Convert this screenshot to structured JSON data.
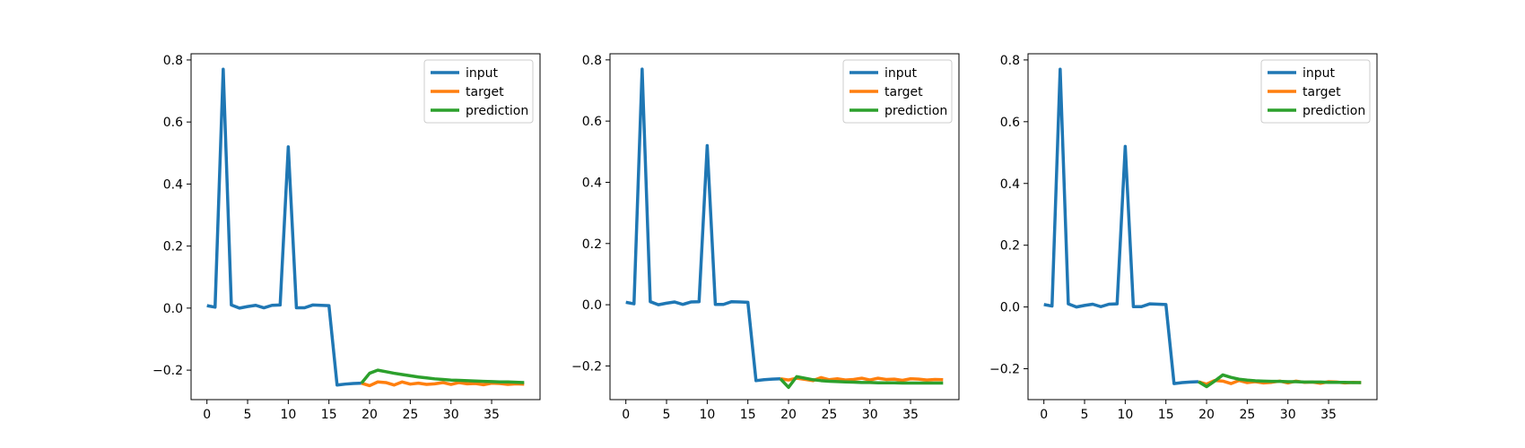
{
  "colors": {
    "input": "#1f77b4",
    "target": "#ff7f0e",
    "prediction": "#2ca02c"
  },
  "chart_data": [
    {
      "type": "line",
      "legend_position": "top-right",
      "grid": false,
      "xlim": [
        -1.95,
        40.95
      ],
      "ylim": [
        -0.295,
        0.82
      ],
      "xticks": [
        0,
        5,
        10,
        15,
        20,
        25,
        30,
        35
      ],
      "yticks": [
        -0.2,
        0.0,
        0.2,
        0.4,
        0.6,
        0.8
      ],
      "ytick_labels": [
        "−0.2",
        "0.0",
        "0.2",
        "0.4",
        "0.6",
        "0.8"
      ],
      "series": [
        {
          "name": "input",
          "x_start": 0,
          "values": [
            0.008,
            0.003,
            0.77,
            0.01,
            0.0,
            0.005,
            0.009,
            0.001,
            0.009,
            0.01,
            0.52,
            0.001,
            0.001,
            0.01,
            0.009,
            0.008,
            -0.248,
            -0.245,
            -0.243,
            -0.242
          ]
        },
        {
          "name": "target",
          "x_start": 19,
          "values": [
            -0.242,
            -0.25,
            -0.238,
            -0.24,
            -0.248,
            -0.238,
            -0.245,
            -0.242,
            -0.246,
            -0.244,
            -0.24,
            -0.246,
            -0.24,
            -0.244,
            -0.243,
            -0.247,
            -0.242,
            -0.243,
            -0.246,
            -0.244,
            -0.245
          ]
        },
        {
          "name": "prediction",
          "x_start": 19,
          "values": [
            -0.242,
            -0.21,
            -0.2,
            -0.205,
            -0.21,
            -0.214,
            -0.218,
            -0.222,
            -0.225,
            -0.228,
            -0.23,
            -0.232,
            -0.233,
            -0.234,
            -0.235,
            -0.236,
            -0.237,
            -0.238,
            -0.238,
            -0.239,
            -0.24
          ]
        }
      ]
    },
    {
      "type": "line",
      "legend_position": "top-right",
      "grid": false,
      "xlim": [
        -1.95,
        40.95
      ],
      "ylim": [
        -0.31,
        0.82
      ],
      "xticks": [
        0,
        5,
        10,
        15,
        20,
        25,
        30,
        35
      ],
      "yticks": [
        -0.2,
        0.0,
        0.2,
        0.4,
        0.6,
        0.8
      ],
      "ytick_labels": [
        "−0.2",
        "0.0",
        "0.2",
        "0.4",
        "0.6",
        "0.8"
      ],
      "series": [
        {
          "name": "input",
          "x_start": 0,
          "values": [
            0.008,
            0.003,
            0.77,
            0.01,
            0.0,
            0.005,
            0.009,
            0.001,
            0.009,
            0.01,
            0.52,
            0.001,
            0.001,
            0.01,
            0.009,
            0.008,
            -0.248,
            -0.245,
            -0.243,
            -0.242
          ]
        },
        {
          "name": "target",
          "x_start": 19,
          "values": [
            -0.242,
            -0.246,
            -0.24,
            -0.244,
            -0.248,
            -0.238,
            -0.245,
            -0.242,
            -0.246,
            -0.244,
            -0.24,
            -0.246,
            -0.24,
            -0.244,
            -0.243,
            -0.247,
            -0.242,
            -0.243,
            -0.246,
            -0.244,
            -0.245
          ]
        },
        {
          "name": "prediction",
          "x_start": 19,
          "values": [
            -0.242,
            -0.27,
            -0.235,
            -0.24,
            -0.245,
            -0.248,
            -0.25,
            -0.251,
            -0.252,
            -0.253,
            -0.254,
            -0.254,
            -0.255,
            -0.255,
            -0.255,
            -0.256,
            -0.256,
            -0.256,
            -0.256,
            -0.256,
            -0.256
          ]
        }
      ]
    },
    {
      "type": "line",
      "legend_position": "top-right",
      "grid": false,
      "xlim": [
        -1.95,
        40.95
      ],
      "ylim": [
        -0.3,
        0.82
      ],
      "xticks": [
        0,
        5,
        10,
        15,
        20,
        25,
        30,
        35
      ],
      "yticks": [
        -0.2,
        0.0,
        0.2,
        0.4,
        0.6,
        0.8
      ],
      "ytick_labels": [
        "−0.2",
        "0.0",
        "0.2",
        "0.4",
        "0.6",
        "0.8"
      ],
      "series": [
        {
          "name": "input",
          "x_start": 0,
          "values": [
            0.008,
            0.003,
            0.77,
            0.01,
            0.0,
            0.005,
            0.009,
            0.001,
            0.009,
            0.01,
            0.52,
            0.001,
            0.001,
            0.01,
            0.009,
            0.008,
            -0.248,
            -0.245,
            -0.243,
            -0.242
          ]
        },
        {
          "name": "target",
          "x_start": 19,
          "values": [
            -0.242,
            -0.25,
            -0.238,
            -0.24,
            -0.248,
            -0.238,
            -0.245,
            -0.242,
            -0.246,
            -0.244,
            -0.24,
            -0.246,
            -0.24,
            -0.244,
            -0.243,
            -0.247,
            -0.242,
            -0.243,
            -0.246,
            -0.244,
            -0.245
          ]
        },
        {
          "name": "prediction",
          "x_start": 19,
          "values": [
            -0.242,
            -0.258,
            -0.24,
            -0.22,
            -0.228,
            -0.234,
            -0.237,
            -0.239,
            -0.24,
            -0.241,
            -0.241,
            -0.242,
            -0.242,
            -0.243,
            -0.243,
            -0.243,
            -0.244,
            -0.244,
            -0.244,
            -0.245,
            -0.245
          ]
        }
      ]
    }
  ]
}
